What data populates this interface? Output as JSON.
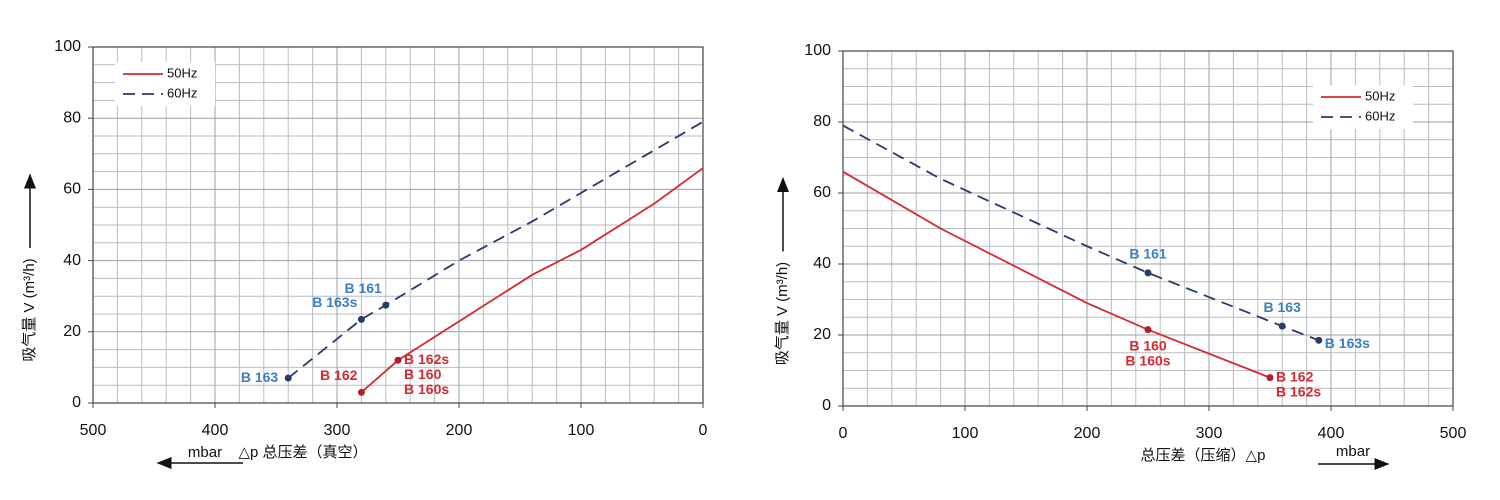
{
  "chart_data": [
    {
      "type": "line",
      "xlim": [
        500,
        0
      ],
      "ylim": [
        0,
        100
      ],
      "xticks": [
        500,
        400,
        300,
        200,
        100,
        0
      ],
      "yticks": [
        0,
        20,
        40,
        60,
        80,
        100
      ],
      "grid": true,
      "minor_grid": true,
      "xlabel": "△p  总压差（真空）",
      "xunit": "mbar",
      "x_direction": "left",
      "ylabel": "吸气量 V (m³/h)",
      "legend": "upper-left",
      "series": [
        {
          "name": "50Hz",
          "color": "#d42a30",
          "linestyle": "solid",
          "x": [
            280,
            250,
            140,
            100,
            40,
            0
          ],
          "values": [
            3,
            12,
            36,
            43,
            56,
            66
          ]
        },
        {
          "name": "60Hz",
          "color": "#2b3a6b",
          "linestyle": "dashed",
          "x": [
            340,
            280,
            260,
            200,
            140,
            40,
            0
          ],
          "values": [
            7,
            23.5,
            27.5,
            40,
            51,
            71,
            79
          ]
        }
      ],
      "annotations": [
        {
          "lines": [
            "B 163"
          ],
          "x": 340,
          "y": 7,
          "color": "#3a7fc1",
          "position": "left"
        },
        {
          "lines": [
            "B 163s"
          ],
          "x": 280,
          "y": 23.5,
          "color": "#3a7fc1",
          "position": "upper-left"
        },
        {
          "lines": [
            "B 161"
          ],
          "x": 260,
          "y": 27.5,
          "color": "#3a7fc1",
          "position": "upper-left"
        },
        {
          "lines": [
            "B 162"
          ],
          "x": 280,
          "y": 3,
          "color": "#d42a30",
          "position": "upper-left"
        },
        {
          "lines": [
            "B 162s",
            "B 160",
            "B 160s"
          ],
          "x": 250,
          "y": 12,
          "color": "#d42a30",
          "position": "lower-right"
        }
      ]
    },
    {
      "type": "line",
      "xlim": [
        0,
        500
      ],
      "ylim": [
        0,
        100
      ],
      "xticks": [
        0,
        100,
        200,
        300,
        400,
        500
      ],
      "yticks": [
        0,
        20,
        40,
        60,
        80,
        100
      ],
      "grid": true,
      "minor_grid": true,
      "xlabel": "总压差（压缩）△p",
      "xunit": "mbar",
      "x_direction": "right",
      "ylabel": "吸气量 V (m³/h)",
      "legend": "upper-right",
      "series": [
        {
          "name": "50Hz",
          "color": "#d42a30",
          "linestyle": "solid",
          "x": [
            0,
            80,
            200,
            250,
            350
          ],
          "values": [
            66,
            50,
            29,
            21.5,
            8
          ]
        },
        {
          "name": "60Hz",
          "color": "#2b3a6b",
          "linestyle": "dashed",
          "x": [
            0,
            80,
            200,
            250,
            360,
            390
          ],
          "values": [
            79,
            64,
            45,
            37.5,
            22.5,
            18.5
          ]
        }
      ],
      "annotations": [
        {
          "lines": [
            "B 161"
          ],
          "x": 250,
          "y": 37.5,
          "color": "#3a7fc1",
          "position": "above"
        },
        {
          "lines": [
            "B 163"
          ],
          "x": 360,
          "y": 22.5,
          "color": "#3a7fc1",
          "position": "above"
        },
        {
          "lines": [
            "B 163s"
          ],
          "x": 390,
          "y": 18.5,
          "color": "#3a7fc1",
          "position": "right"
        },
        {
          "lines": [
            "B 160",
            "B 160s"
          ],
          "x": 250,
          "y": 21.5,
          "color": "#d42a30",
          "position": "below"
        },
        {
          "lines": [
            "B 162",
            "B 162s"
          ],
          "x": 350,
          "y": 8,
          "color": "#d42a30",
          "position": "lower-right"
        }
      ]
    }
  ]
}
